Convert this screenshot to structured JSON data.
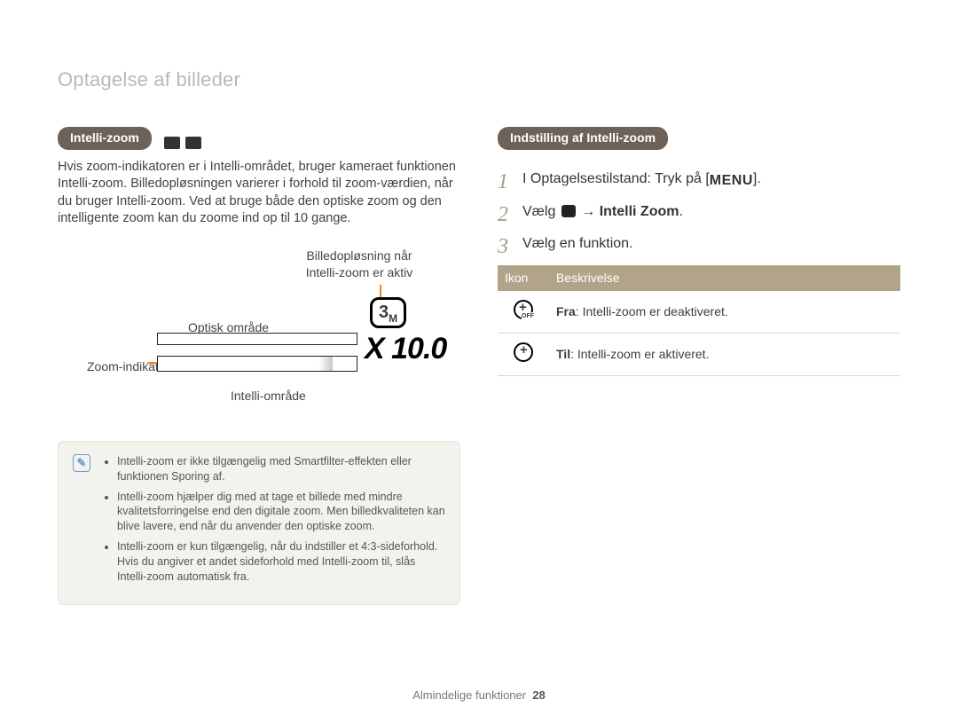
{
  "page_title": "Optagelse af billeder",
  "left": {
    "pill": "Intelli-zoom",
    "body": "Hvis zoom-indikatoren er i Intelli-området, bruger kameraet funktionen Intelli-zoom. Billedopløsningen varierer i forhold til zoom-værdien, når du bruger Intelli-zoom. Ved at bruge både den optiske zoom og den intelligente zoom kan du zoome ind op til 10 gange.",
    "diagram": {
      "label_resolution_line1": "Billedopløsning når",
      "label_resolution_line2": "Intelli-zoom er aktiv",
      "label_optical": "Optisk område",
      "label_zoom_indicator": "Zoom-indikator",
      "label_intelli_area": "Intelli-område",
      "zoom_value": "X 10.0",
      "res_badge": "3",
      "res_badge_sub": "M",
      "accent_color": "#e9842a"
    },
    "notes": [
      "Intelli-zoom er ikke tilgængelig med Smartfilter-effekten eller funktionen Sporing af.",
      "Intelli-zoom hjælper dig med at tage et billede med mindre kvalitetsforringelse end den digitale zoom. Men billedkvaliteten kan blive lavere, end når du anvender den optiske zoom.",
      "Intelli-zoom er kun tilgængelig, når du indstiller et 4:3-sideforhold. Hvis du angiver et andet sideforhold med Intelli-zoom til, slås Intelli-zoom automatisk fra."
    ]
  },
  "right": {
    "pill": "Indstilling af Intelli-zoom",
    "steps": {
      "s1_pre": "I Optagelsestilstand: Tryk på [",
      "s1_key": "MENU",
      "s1_post": "].",
      "s2_pre": "Vælg ",
      "s2_arrow": " → ",
      "s2_bold": "Intelli Zoom",
      "s2_post": ".",
      "s3": "Vælg en funktion."
    },
    "table": {
      "head_icon": "Ikon",
      "head_desc": "Beskrivelse",
      "row1_bold": "Fra",
      "row1_rest": ": Intelli-zoom er deaktiveret.",
      "row2_bold": "Til",
      "row2_rest": ": Intelli-zoom er aktiveret."
    }
  },
  "footer": {
    "section": "Almindelige funktioner",
    "page": "28"
  },
  "colors": {
    "pill_bg": "#6e6158",
    "table_head_bg": "#b2a489",
    "note_bg": "#f4f2ed",
    "title_gray": "#b9b9b9",
    "step_num": "#a79b88",
    "accent": "#e9842a"
  }
}
